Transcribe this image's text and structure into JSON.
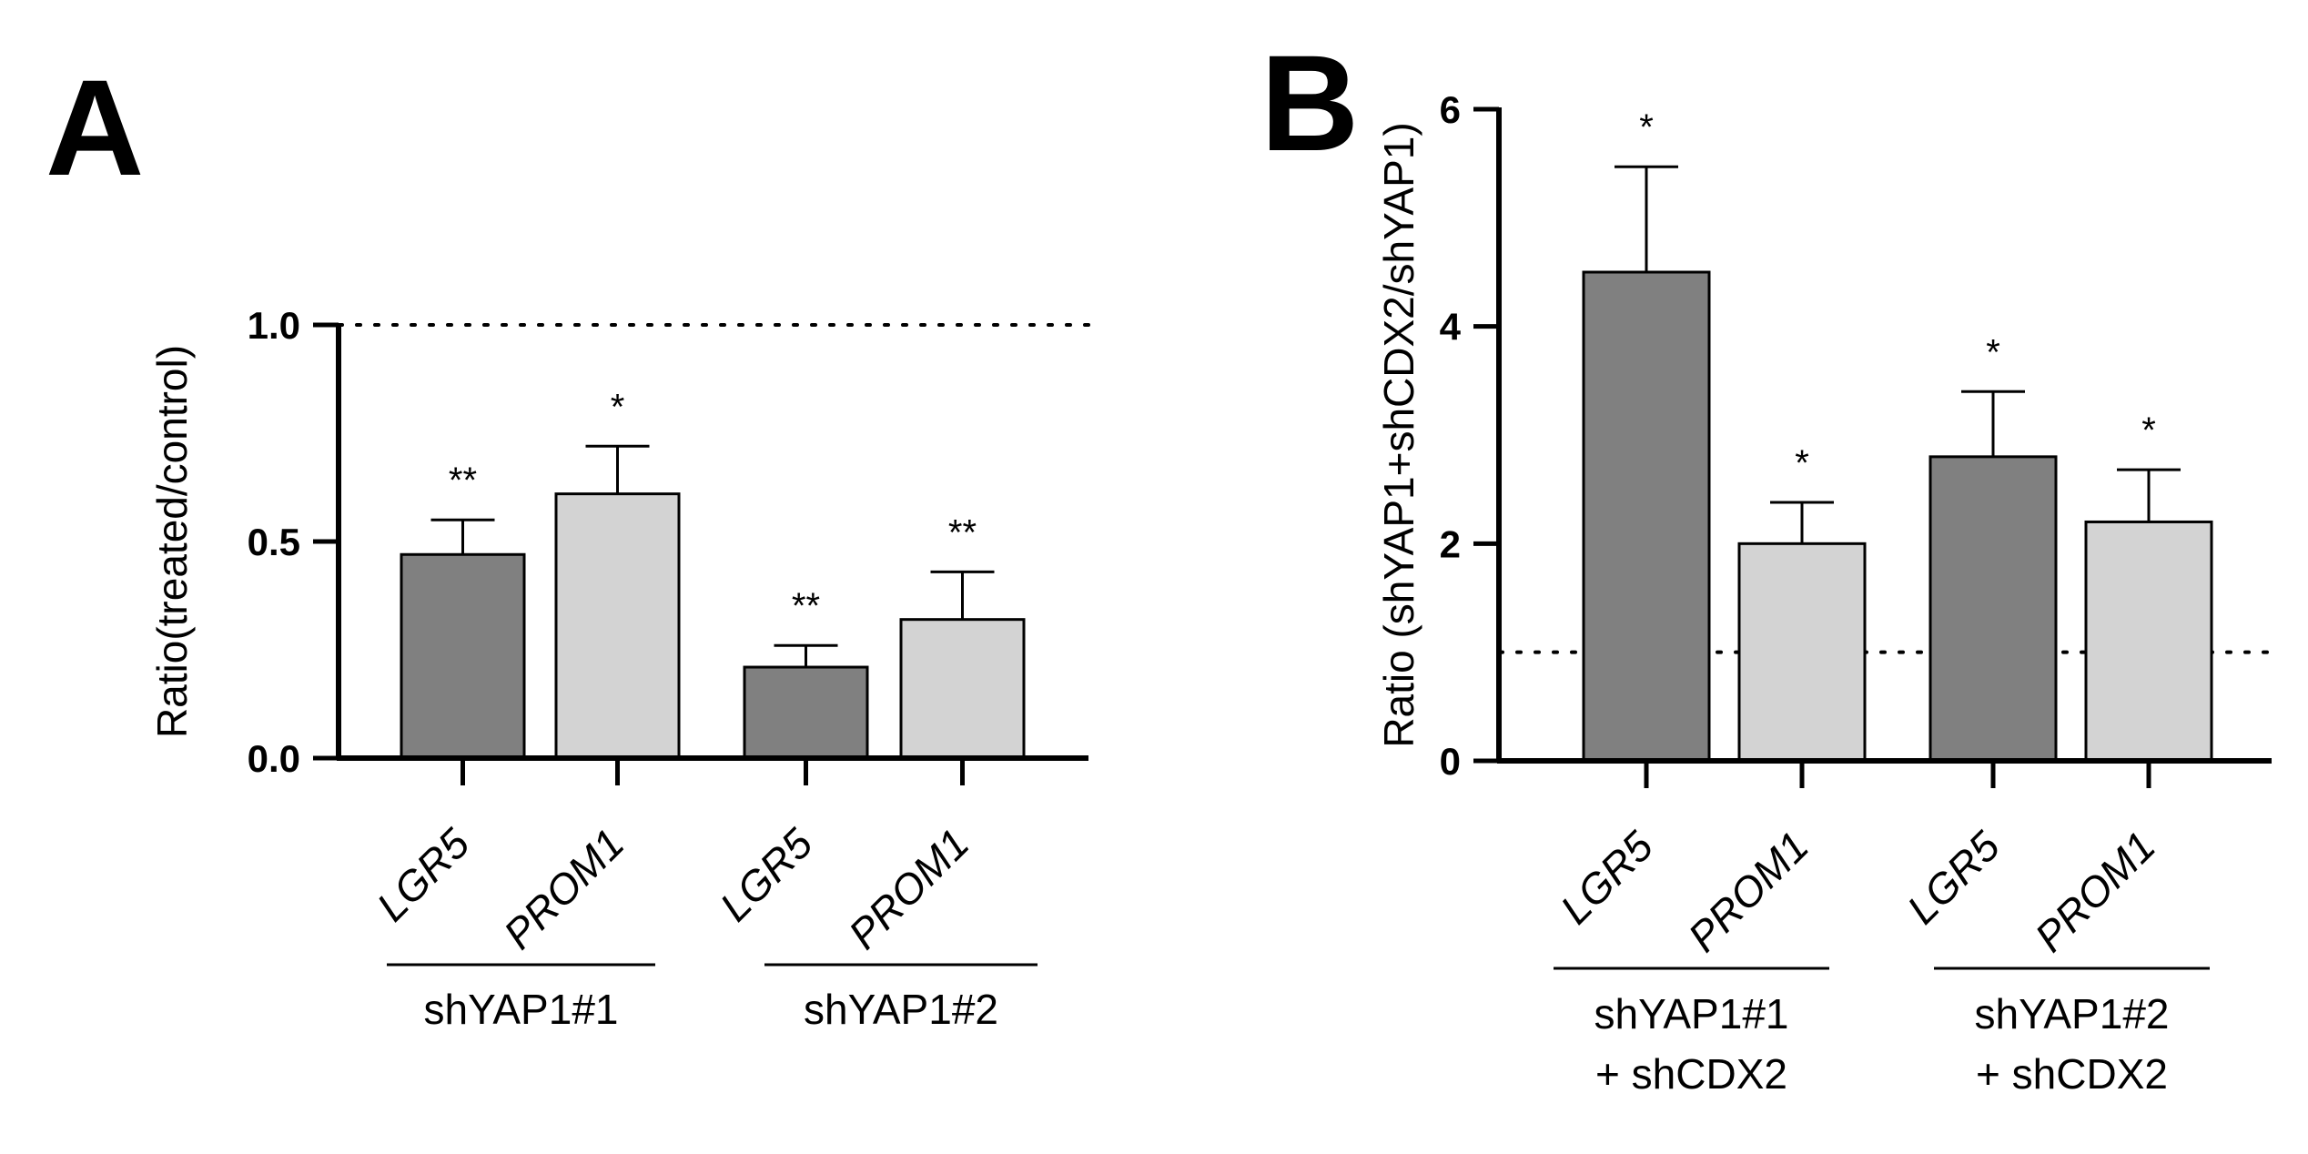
{
  "chart_data": [
    {
      "panel": "A",
      "type": "bar",
      "ylabel": "Ratio(treated/control)",
      "ylim": [
        0,
        1.0
      ],
      "yticks": [
        0.0,
        0.5,
        1.0
      ],
      "ytick_labels": [
        "0.0",
        "0.5",
        "1.0"
      ],
      "reference_line": 1.0,
      "categories": [
        "LGR5",
        "PROM1",
        "LGR5",
        "PROM1"
      ],
      "values": [
        0.47,
        0.61,
        0.21,
        0.32
      ],
      "errors": [
        0.08,
        0.11,
        0.05,
        0.11
      ],
      "significance": [
        "**",
        "*",
        "**",
        "**"
      ],
      "bar_colors": [
        "#808080",
        "#d3d3d3",
        "#808080",
        "#d3d3d3"
      ],
      "groups": [
        {
          "lines": [
            "shYAP1#1"
          ]
        },
        {
          "lines": [
            "shYAP1#2"
          ]
        }
      ]
    },
    {
      "panel": "B",
      "type": "bar",
      "ylabel": "Ratio (shYAP1+shCDX2/shYAP1)",
      "ylim": [
        0,
        6
      ],
      "yticks": [
        0,
        2,
        4,
        6
      ],
      "ytick_labels": [
        "0",
        "2",
        "4",
        "6"
      ],
      "reference_line": 1.0,
      "categories": [
        "LGR5",
        "PROM1",
        "LGR5",
        "PROM1"
      ],
      "values": [
        4.5,
        2.0,
        2.8,
        2.2
      ],
      "errors": [
        0.97,
        0.38,
        0.6,
        0.48
      ],
      "significance": [
        "*",
        "*",
        "*",
        "*"
      ],
      "bar_colors": [
        "#808080",
        "#d3d3d3",
        "#808080",
        "#d3d3d3"
      ],
      "groups": [
        {
          "lines": [
            "shYAP1#1",
            "+ shCDX2"
          ]
        },
        {
          "lines": [
            "shYAP1#2",
            "+ shCDX2"
          ]
        }
      ]
    }
  ]
}
